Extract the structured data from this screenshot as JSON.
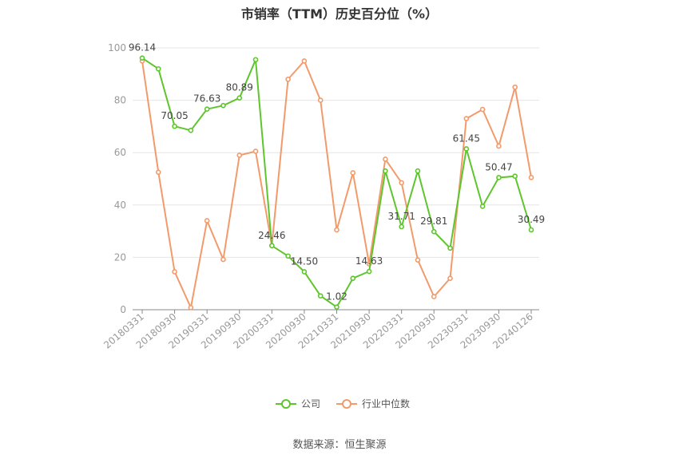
{
  "chart_data": {
    "type": "line",
    "title": "市销率（TTM）历史百分位（%）",
    "source": "数据来源：恒生聚源",
    "xlabel": "",
    "ylabel": "",
    "ylim": [
      0,
      100
    ],
    "yticks": [
      0,
      20,
      40,
      60,
      80,
      100
    ],
    "grid": true,
    "legend_position": "bottom",
    "x_tick_labels": [
      "20180331",
      "20180930",
      "20190331",
      "20190930",
      "20200331",
      "20200930",
      "20210331",
      "20210930",
      "20220331",
      "20220930",
      "20230331",
      "20230930",
      "20240126"
    ],
    "x": [
      "20180331",
      "20180630",
      "20180930",
      "20181231",
      "20190331",
      "20190630",
      "20190930",
      "20191231",
      "20200331",
      "20200630",
      "20200930",
      "20201231",
      "20210331",
      "20210630",
      "20210930",
      "20211231",
      "20220331",
      "20220630",
      "20220930",
      "20221231",
      "20230331",
      "20230630",
      "20230930",
      "20231231",
      "20240126"
    ],
    "series": [
      {
        "name": "公司",
        "color": "#5fc52e",
        "values": [
          96.14,
          92,
          70.05,
          68.5,
          76.63,
          78,
          80.89,
          95.5,
          24.46,
          20.5,
          14.5,
          5.3,
          1.02,
          12,
          14.63,
          53,
          31.71,
          53,
          29.81,
          23.5,
          61.45,
          39.5,
          50.47,
          51,
          30.49
        ],
        "labeled_points": {
          "0": "96.14",
          "2": "70.05",
          "4": "76.63",
          "6": "80.89",
          "8": "24.46",
          "10": "14.50",
          "12": "1.02",
          "14": "14.63",
          "16": "31.71",
          "18": "29.81",
          "20": "61.45",
          "22": "50.47",
          "24": "30.49"
        }
      },
      {
        "name": "行业中位数",
        "color": "#f39a6b",
        "values": [
          95,
          52.5,
          14.5,
          0.8,
          34,
          19.2,
          59,
          60.5,
          24.5,
          88,
          95,
          80,
          30.5,
          52.3,
          17.5,
          57.5,
          48.5,
          19,
          5,
          12,
          73,
          76.5,
          62.5,
          85,
          50.5
        ]
      }
    ]
  }
}
